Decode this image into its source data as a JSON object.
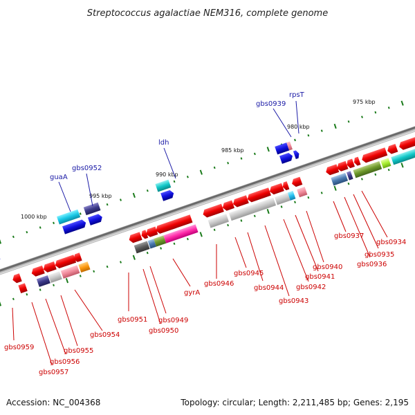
{
  "title": "Streptococcus agalactiae NEM316, complete genome",
  "footer": {
    "accession": "Accession: NC_004368",
    "topology": "Topology: circular; Length: 2,211,485 bp; Genes: 2,195"
  },
  "ruler": {
    "labels": [
      "1000 kbp",
      "995 kbp",
      "990 kbp",
      "985 kbp",
      "980 kbp",
      "975 kbp"
    ]
  },
  "genes_top": [
    {
      "name": "guaA",
      "color": "#1a1aa6"
    },
    {
      "name": "gbs0952",
      "color": "#1a1aa6"
    },
    {
      "name": "ldh",
      "color": "#1a1aa6"
    },
    {
      "name": "gbs0939",
      "color": "#1a1aa6"
    },
    {
      "name": "rpsT",
      "color": "#1a1aa6"
    }
  ],
  "genes_bottom": [
    {
      "name": "gbs0959"
    },
    {
      "name": "gbs0957"
    },
    {
      "name": "gbs0956"
    },
    {
      "name": "gbs0955"
    },
    {
      "name": "gbs0954"
    },
    {
      "name": "gbs0951"
    },
    {
      "name": "gbs0950"
    },
    {
      "name": "gbs0949"
    },
    {
      "name": "gyrA"
    },
    {
      "name": "gbs0946"
    },
    {
      "name": "gbs0945"
    },
    {
      "name": "gbs0944"
    },
    {
      "name": "gbs0943"
    },
    {
      "name": "gbs0942"
    },
    {
      "name": "gbs0941"
    },
    {
      "name": "gbs0940"
    },
    {
      "name": "gbs0937"
    },
    {
      "name": "gbs0936"
    },
    {
      "name": "gbs0935"
    },
    {
      "name": "gbs0934"
    }
  ],
  "colors": {
    "backbone": "#888888",
    "forward_strand": "#ee0000",
    "reverse_strand": "#1010dd",
    "ruler_tick": "#1a7a1a",
    "label_red": "#cc0000",
    "label_blue": "#1a1aa6"
  }
}
